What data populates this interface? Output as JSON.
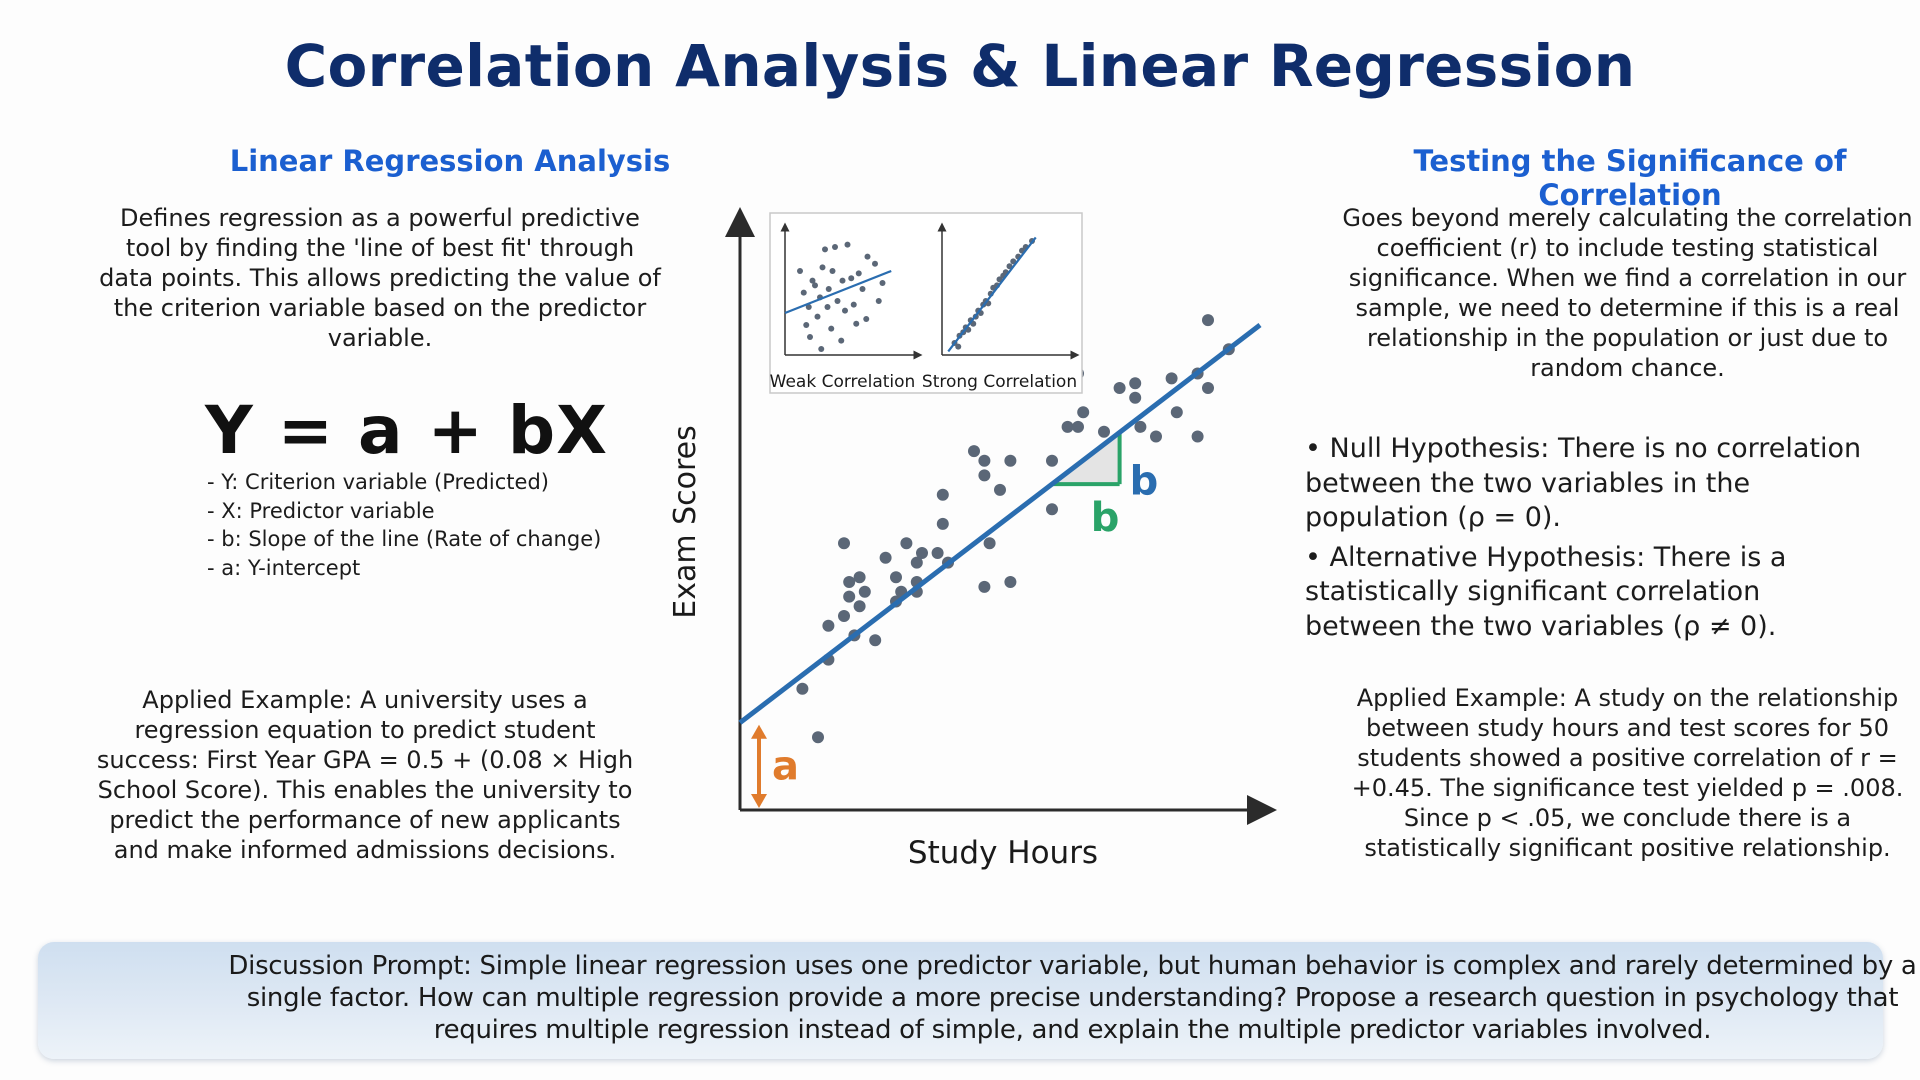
{
  "title": "Correlation Analysis & Linear Regression",
  "left": {
    "heading": "Linear Regression Analysis",
    "description": "Defines regression as a powerful predictive tool by finding the 'line of best fit' through data points. This allows predicting the value of the criterion variable based on the predictor variable.",
    "equation": "Y = a + bX",
    "equation_terms": [
      "- Y: Criterion variable (Predicted)",
      "- X: Predictor variable",
      "- b: Slope of the line (Rate of change)",
      "- a: Y-intercept"
    ],
    "example": "Applied Example: A university uses a regression equation to predict student success: First Year GPA = 0.5 + (0.08 × High School Score). This enables the university to predict the performance of new applicants and make informed admissions decisions."
  },
  "right": {
    "heading": "Testing the Significance of Correlation",
    "description": "Goes beyond merely calculating the correlation coefficient (r) to include testing statistical significance. When we find a correlation in our sample, we need to determine if this is a real relationship in the population or just due to random chance.",
    "hypotheses": [
      "• Null Hypothesis: There is no correlation between the two variables in the population (ρ = 0).",
      "• Alternative Hypothesis: There is a statistically significant correlation between the two variables (ρ ≠ 0)."
    ],
    "example": "Applied Example: A study on the relationship between study hours and test scores for 50 students showed a positive correlation of r = +0.45. The significance test yielded p = .008. Since p < .05, we conclude there is a statistically significant positive relationship."
  },
  "prompt": "Discussion Prompt: Simple linear regression uses one predictor variable, but human behavior is complex and rarely determined by a single factor. How can multiple regression provide a more precise understanding? Propose a research question in psychology that requires multiple regression instead of simple, and explain the multiple predictor variables involved.",
  "chart_data": [
    {
      "type": "scatter",
      "title": "",
      "xlabel": "Study Hours",
      "ylabel": "Exam Scores",
      "xlim": [
        0,
        100
      ],
      "ylim": [
        0,
        100
      ],
      "points": [
        [
          12,
          25
        ],
        [
          15,
          15
        ],
        [
          17,
          31
        ],
        [
          17,
          38
        ],
        [
          20,
          40
        ],
        [
          21,
          44
        ],
        [
          21,
          47
        ],
        [
          20,
          55
        ],
        [
          22,
          36
        ],
        [
          23,
          42
        ],
        [
          23,
          48
        ],
        [
          24,
          45
        ],
        [
          26,
          35
        ],
        [
          28,
          52
        ],
        [
          30,
          43
        ],
        [
          30,
          48
        ],
        [
          31,
          45
        ],
        [
          32,
          55
        ],
        [
          34,
          47
        ],
        [
          34,
          51
        ],
        [
          35,
          53
        ],
        [
          34,
          45
        ],
        [
          38,
          53
        ],
        [
          40,
          51
        ],
        [
          39,
          59
        ],
        [
          39,
          65
        ],
        [
          45,
          74
        ],
        [
          47,
          72
        ],
        [
          47,
          69
        ],
        [
          50,
          66
        ],
        [
          47,
          46
        ],
        [
          48,
          55
        ],
        [
          52,
          47
        ],
        [
          52,
          72
        ],
        [
          60,
          62
        ],
        [
          60,
          72
        ],
        [
          63,
          79
        ],
        [
          65,
          79
        ],
        [
          66,
          82
        ],
        [
          65,
          90
        ],
        [
          70,
          78
        ],
        [
          73,
          87
        ],
        [
          76,
          85
        ],
        [
          76,
          88
        ],
        [
          77,
          79
        ],
        [
          80,
          77
        ],
        [
          84,
          82
        ],
        [
          83,
          89
        ],
        [
          88,
          90
        ],
        [
          88,
          77
        ],
        [
          90,
          87
        ],
        [
          90,
          101
        ],
        [
          94,
          95
        ]
      ],
      "regression_line": {
        "x": [
          0,
          100
        ],
        "y": [
          18,
          100
        ]
      },
      "labels": {
        "intercept": "a",
        "rise": "b",
        "run": "b"
      },
      "colors": {
        "line": "#2a6db0",
        "points": "#5b6777",
        "intercept": "#e07b2c",
        "slope": "#2aa368",
        "rise_label": "#2a6db0"
      }
    },
    {
      "type": "scatter",
      "title": "Weak Correlation",
      "xlim": [
        0,
        100
      ],
      "ylim": [
        0,
        100
      ],
      "points": [
        [
          12,
          70
        ],
        [
          15,
          52
        ],
        [
          17,
          25
        ],
        [
          19,
          40
        ],
        [
          20,
          15
        ],
        [
          22,
          62
        ],
        [
          24,
          58
        ],
        [
          26,
          32
        ],
        [
          28,
          48
        ],
        [
          29,
          5
        ],
        [
          30,
          73
        ],
        [
          32,
          88
        ],
        [
          34,
          40
        ],
        [
          35,
          55
        ],
        [
          37,
          22
        ],
        [
          38,
          70
        ],
        [
          40,
          90
        ],
        [
          42,
          45
        ],
        [
          45,
          12
        ],
        [
          46,
          62
        ],
        [
          48,
          37
        ],
        [
          50,
          92
        ],
        [
          53,
          64
        ],
        [
          55,
          42
        ],
        [
          57,
          26
        ],
        [
          59,
          68
        ],
        [
          62,
          55
        ],
        [
          65,
          30
        ],
        [
          66,
          82
        ],
        [
          72,
          76
        ],
        [
          75,
          45
        ],
        [
          78,
          60
        ]
      ],
      "regression_line": {
        "x": [
          0,
          85
        ],
        "y": [
          35,
          70
        ]
      },
      "colors": {
        "line": "#2a6db0",
        "points": "#5b6777"
      }
    },
    {
      "type": "scatter",
      "title": "Strong Correlation",
      "xlim": [
        0,
        100
      ],
      "ylim": [
        0,
        100
      ],
      "points": [
        [
          10,
          10
        ],
        [
          13,
          7
        ],
        [
          14,
          16
        ],
        [
          17,
          19
        ],
        [
          19,
          23
        ],
        [
          21,
          21
        ],
        [
          23,
          29
        ],
        [
          25,
          26
        ],
        [
          27,
          32
        ],
        [
          29,
          37
        ],
        [
          31,
          35
        ],
        [
          33,
          42
        ],
        [
          35,
          45
        ],
        [
          37,
          43
        ],
        [
          39,
          51
        ],
        [
          41,
          56
        ],
        [
          44,
          58
        ],
        [
          46,
          63
        ],
        [
          49,
          66
        ],
        [
          51,
          69
        ],
        [
          54,
          74
        ],
        [
          57,
          78
        ],
        [
          61,
          82
        ],
        [
          64,
          87
        ],
        [
          67,
          90
        ],
        [
          72,
          95
        ]
      ],
      "regression_line": {
        "x": [
          5,
          75
        ],
        "y": [
          3,
          98
        ]
      },
      "colors": {
        "line": "#2a6db0",
        "points": "#5b6777"
      }
    }
  ]
}
